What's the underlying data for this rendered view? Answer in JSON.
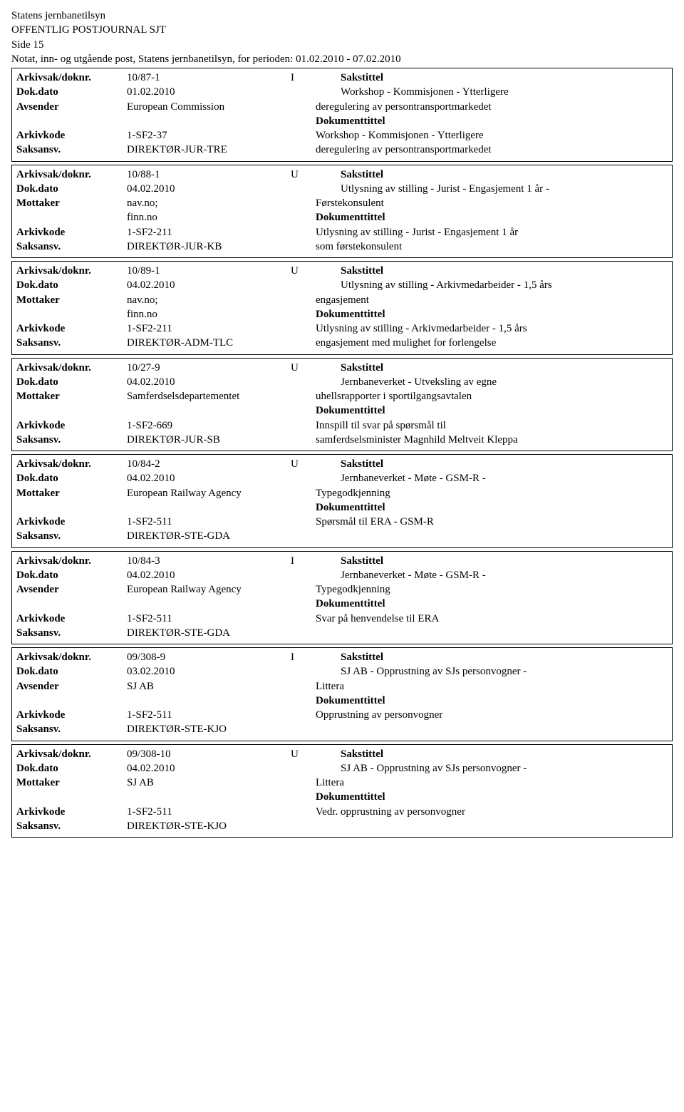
{
  "header": {
    "org": "Statens jernbanetilsyn",
    "title": "OFFENTLIG POSTJOURNAL SJT",
    "page": "Side 15",
    "period": "Notat, inn- og utgående post, Statens jernbanetilsyn, for perioden: 01.02.2010 - 07.02.2010"
  },
  "labels": {
    "arkivsak": "Arkivsak/doknr.",
    "dokdato": "Dok.dato",
    "avsender": "Avsender",
    "mottaker": "Mottaker",
    "arkivkode": "Arkivkode",
    "saksansv": "Saksansv.",
    "sakstittel": "Sakstittel",
    "dokumenttittel": "Dokumenttittel"
  },
  "entries": [
    {
      "doknr": "10/87-1",
      "type": "I",
      "dato": "01.02.2010",
      "party_label": "Avsender",
      "party": "European Commission",
      "arkivkode": "1-SF2-37",
      "saksansv": "DIREKTØR-JUR-TRE",
      "sakstittel_l1": "Workshop - Kommisjonen - Ytterligere",
      "sakstittel_l2": "deregulering av persontransportmarkedet",
      "doktittel_l1": "Workshop - Kommisjonen - Ytterligere",
      "doktittel_l2": "deregulering av persontransportmarkedet"
    },
    {
      "doknr": "10/88-1",
      "type": "U",
      "dato": "04.02.2010",
      "party_label": "Mottaker",
      "party": "nav.no;",
      "party_l2": "finn.no",
      "arkivkode": "1-SF2-211",
      "saksansv": "DIREKTØR-JUR-KB",
      "sakstittel_l1": "Utlysning av stilling - Jurist - Engasjement 1 år -",
      "sakstittel_l2": "Førstekonsulent",
      "doktittel_l1": "Utlysning av stilling - Jurist - Engasjement 1 år",
      "doktittel_l2": "som førstekonsulent"
    },
    {
      "doknr": "10/89-1",
      "type": "U",
      "dato": "04.02.2010",
      "party_label": "Mottaker",
      "party": "nav.no;",
      "party_l2": "finn.no",
      "arkivkode": "1-SF2-211",
      "saksansv": "DIREKTØR-ADM-TLC",
      "sakstittel_l1": "Utlysning av stilling - Arkivmedarbeider - 1,5 års",
      "sakstittel_l2": "engasjement",
      "doktittel_l1": "Utlysning av stilling - Arkivmedarbeider - 1,5 års",
      "doktittel_l2": "engasjement med mulighet for forlengelse"
    },
    {
      "doknr": "10/27-9",
      "type": "U",
      "dato": "04.02.2010",
      "party_label": "Mottaker",
      "party": "Samferdselsdepartementet",
      "arkivkode": "1-SF2-669",
      "saksansv": "DIREKTØR-JUR-SB",
      "sakstittel_l1": "Jernbaneverket - Utveksling av egne",
      "sakstittel_l2": "uhellsrapporter i sportilgangsavtalen",
      "doktittel_l1": "Innspill til svar på spørsmål til",
      "doktittel_l2": "samferdselsminister Magnhild Meltveit Kleppa"
    },
    {
      "doknr": "10/84-2",
      "type": "U",
      "dato": "04.02.2010",
      "party_label": "Mottaker",
      "party": "European Railway Agency",
      "arkivkode": "1-SF2-511",
      "saksansv": "DIREKTØR-STE-GDA",
      "sakstittel_l1": "Jernbaneverket - Møte - GSM-R -",
      "sakstittel_l2": "Typegodkjenning",
      "doktittel_l1": "Spørsmål til ERA - GSM-R",
      "doktittel_l2": ""
    },
    {
      "doknr": "10/84-3",
      "type": "I",
      "dato": "04.02.2010",
      "party_label": "Avsender",
      "party": "European Railway Agency",
      "arkivkode": "1-SF2-511",
      "saksansv": "DIREKTØR-STE-GDA",
      "sakstittel_l1": "Jernbaneverket - Møte - GSM-R -",
      "sakstittel_l2": "Typegodkjenning",
      "doktittel_l1": "Svar på henvendelse til ERA",
      "doktittel_l2": ""
    },
    {
      "doknr": "09/308-9",
      "type": "I",
      "dato": "03.02.2010",
      "party_label": "Avsender",
      "party": "SJ AB",
      "arkivkode": "1-SF2-511",
      "saksansv": "DIREKTØR-STE-KJO",
      "sakstittel_l1": "SJ AB - Opprustning av SJs personvogner -",
      "sakstittel_l2": "Littera",
      "doktittel_l1": "Opprustning av personvogner",
      "doktittel_l2": ""
    },
    {
      "doknr": "09/308-10",
      "type": "U",
      "dato": "04.02.2010",
      "party_label": "Mottaker",
      "party": "SJ AB",
      "arkivkode": "1-SF2-511",
      "saksansv": "DIREKTØR-STE-KJO",
      "sakstittel_l1": "SJ AB - Opprustning av SJs personvogner -",
      "sakstittel_l2": "Littera",
      "doktittel_l1": "Vedr. opprustning av personvogner",
      "doktittel_l2": ""
    }
  ]
}
